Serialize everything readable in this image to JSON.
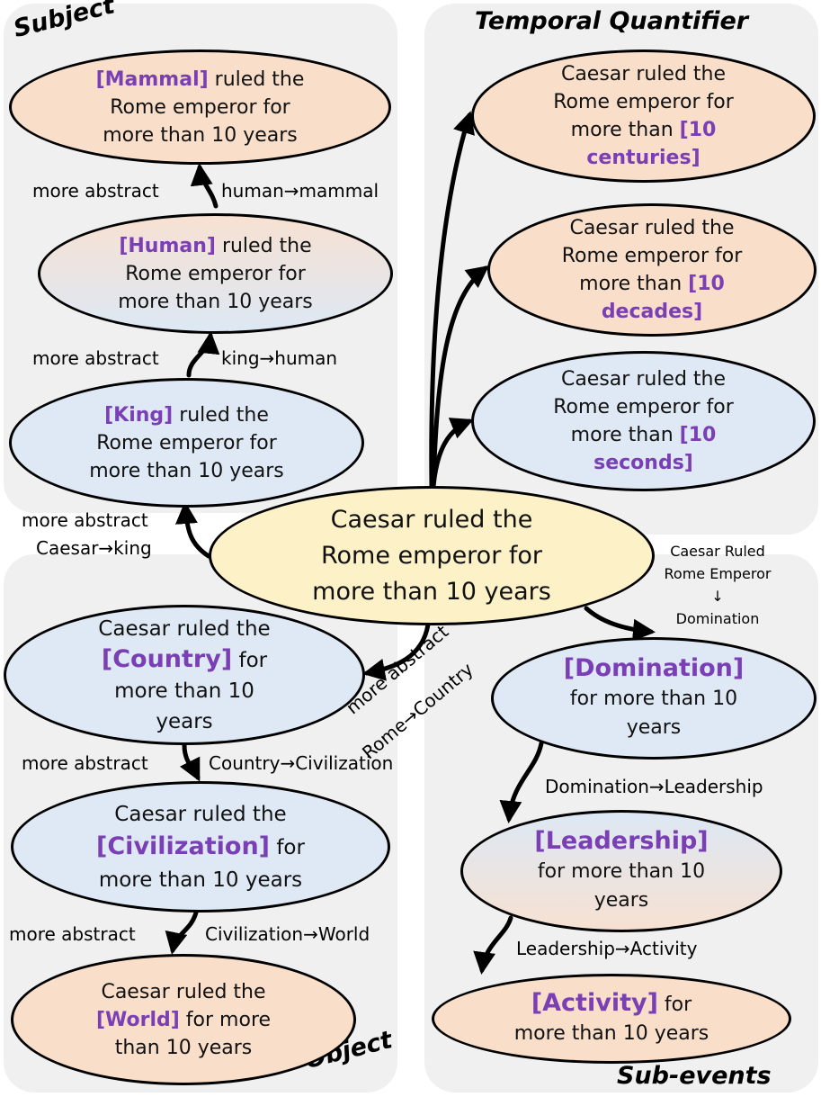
{
  "panels": {
    "subject": "Subject",
    "temporal": "Temporal Quantifier",
    "object": "Object",
    "subevents": "Sub-events"
  },
  "center": {
    "l1": "Caesar ruled the",
    "l2": "Rome emperor for",
    "l3": "more than 10 years"
  },
  "subject": {
    "mammal": {
      "hl": "[Mammal]",
      "l1": " ruled the",
      "l2": "Rome emperor for",
      "l3": "more than 10 years"
    },
    "human": {
      "hl": "[Human]",
      "l1": " ruled the",
      "l2": "Rome emperor for",
      "l3": "more than 10 years"
    },
    "king": {
      "hl": "[King]",
      "l1": " ruled the",
      "l2": "Rome emperor for",
      "l3": "more than 10 years"
    },
    "edges": {
      "human_mammal_a": "more abstract",
      "human_mammal_b": "human→mammal",
      "king_human_a": "more abstract",
      "king_human_b": "king→human",
      "caesar_king_a": "more abstract",
      "caesar_king_b": "Caesar→king"
    }
  },
  "temporal": {
    "centuries": {
      "l1": "Caesar ruled the",
      "l2": "Rome emperor for",
      "l3": "more than ",
      "hl1": "[10",
      "hl2": "centuries]"
    },
    "decades": {
      "l1": "Caesar ruled the",
      "l2": "Rome emperor for",
      "l3": "more than ",
      "hl1": "[10",
      "hl2": "decades]"
    },
    "seconds": {
      "l1": "Caesar ruled the",
      "l2": "Rome emperor for",
      "l3": "more than ",
      "hl1": "[10",
      "hl2": "seconds]"
    }
  },
  "object": {
    "country": {
      "l1": "Caesar ruled the",
      "hl": "[Country]",
      "l2": " for",
      "l3": "more than 10",
      "l4": "years"
    },
    "civilization": {
      "l1": "Caesar ruled the",
      "hl": "[Civilization]",
      "l2": " for",
      "l3": "more than 10 years"
    },
    "world": {
      "l1": "Caesar ruled the",
      "hl": "[World]",
      "l2": " for more",
      "l3": "than 10 years"
    },
    "edges": {
      "rome_country_a": "more abstract",
      "rome_country_b": "Rome→Country",
      "country_civ_a": "more abstract",
      "country_civ_b": "Country→Civilization",
      "civ_world_a": "more abstract",
      "civ_world_b": "Civilization→World"
    }
  },
  "subevents": {
    "domination": {
      "hl": "[Domination]",
      "l1": "for more than 10",
      "l2": "years"
    },
    "leadership": {
      "hl": "[Leadership]",
      "l1": "for more than 10",
      "l2": "years"
    },
    "activity": {
      "hl": "[Activity]",
      "l1": " for",
      "l2": "more than 10 years"
    },
    "edges": {
      "ruled_l1": "Caesar Ruled",
      "ruled_l2": "Rome Emperor",
      "ruled_arrow": "↓",
      "ruled_l3": "Domination",
      "dom_lead": "Domination→Leadership",
      "lead_act": "Leadership→Activity"
    }
  }
}
